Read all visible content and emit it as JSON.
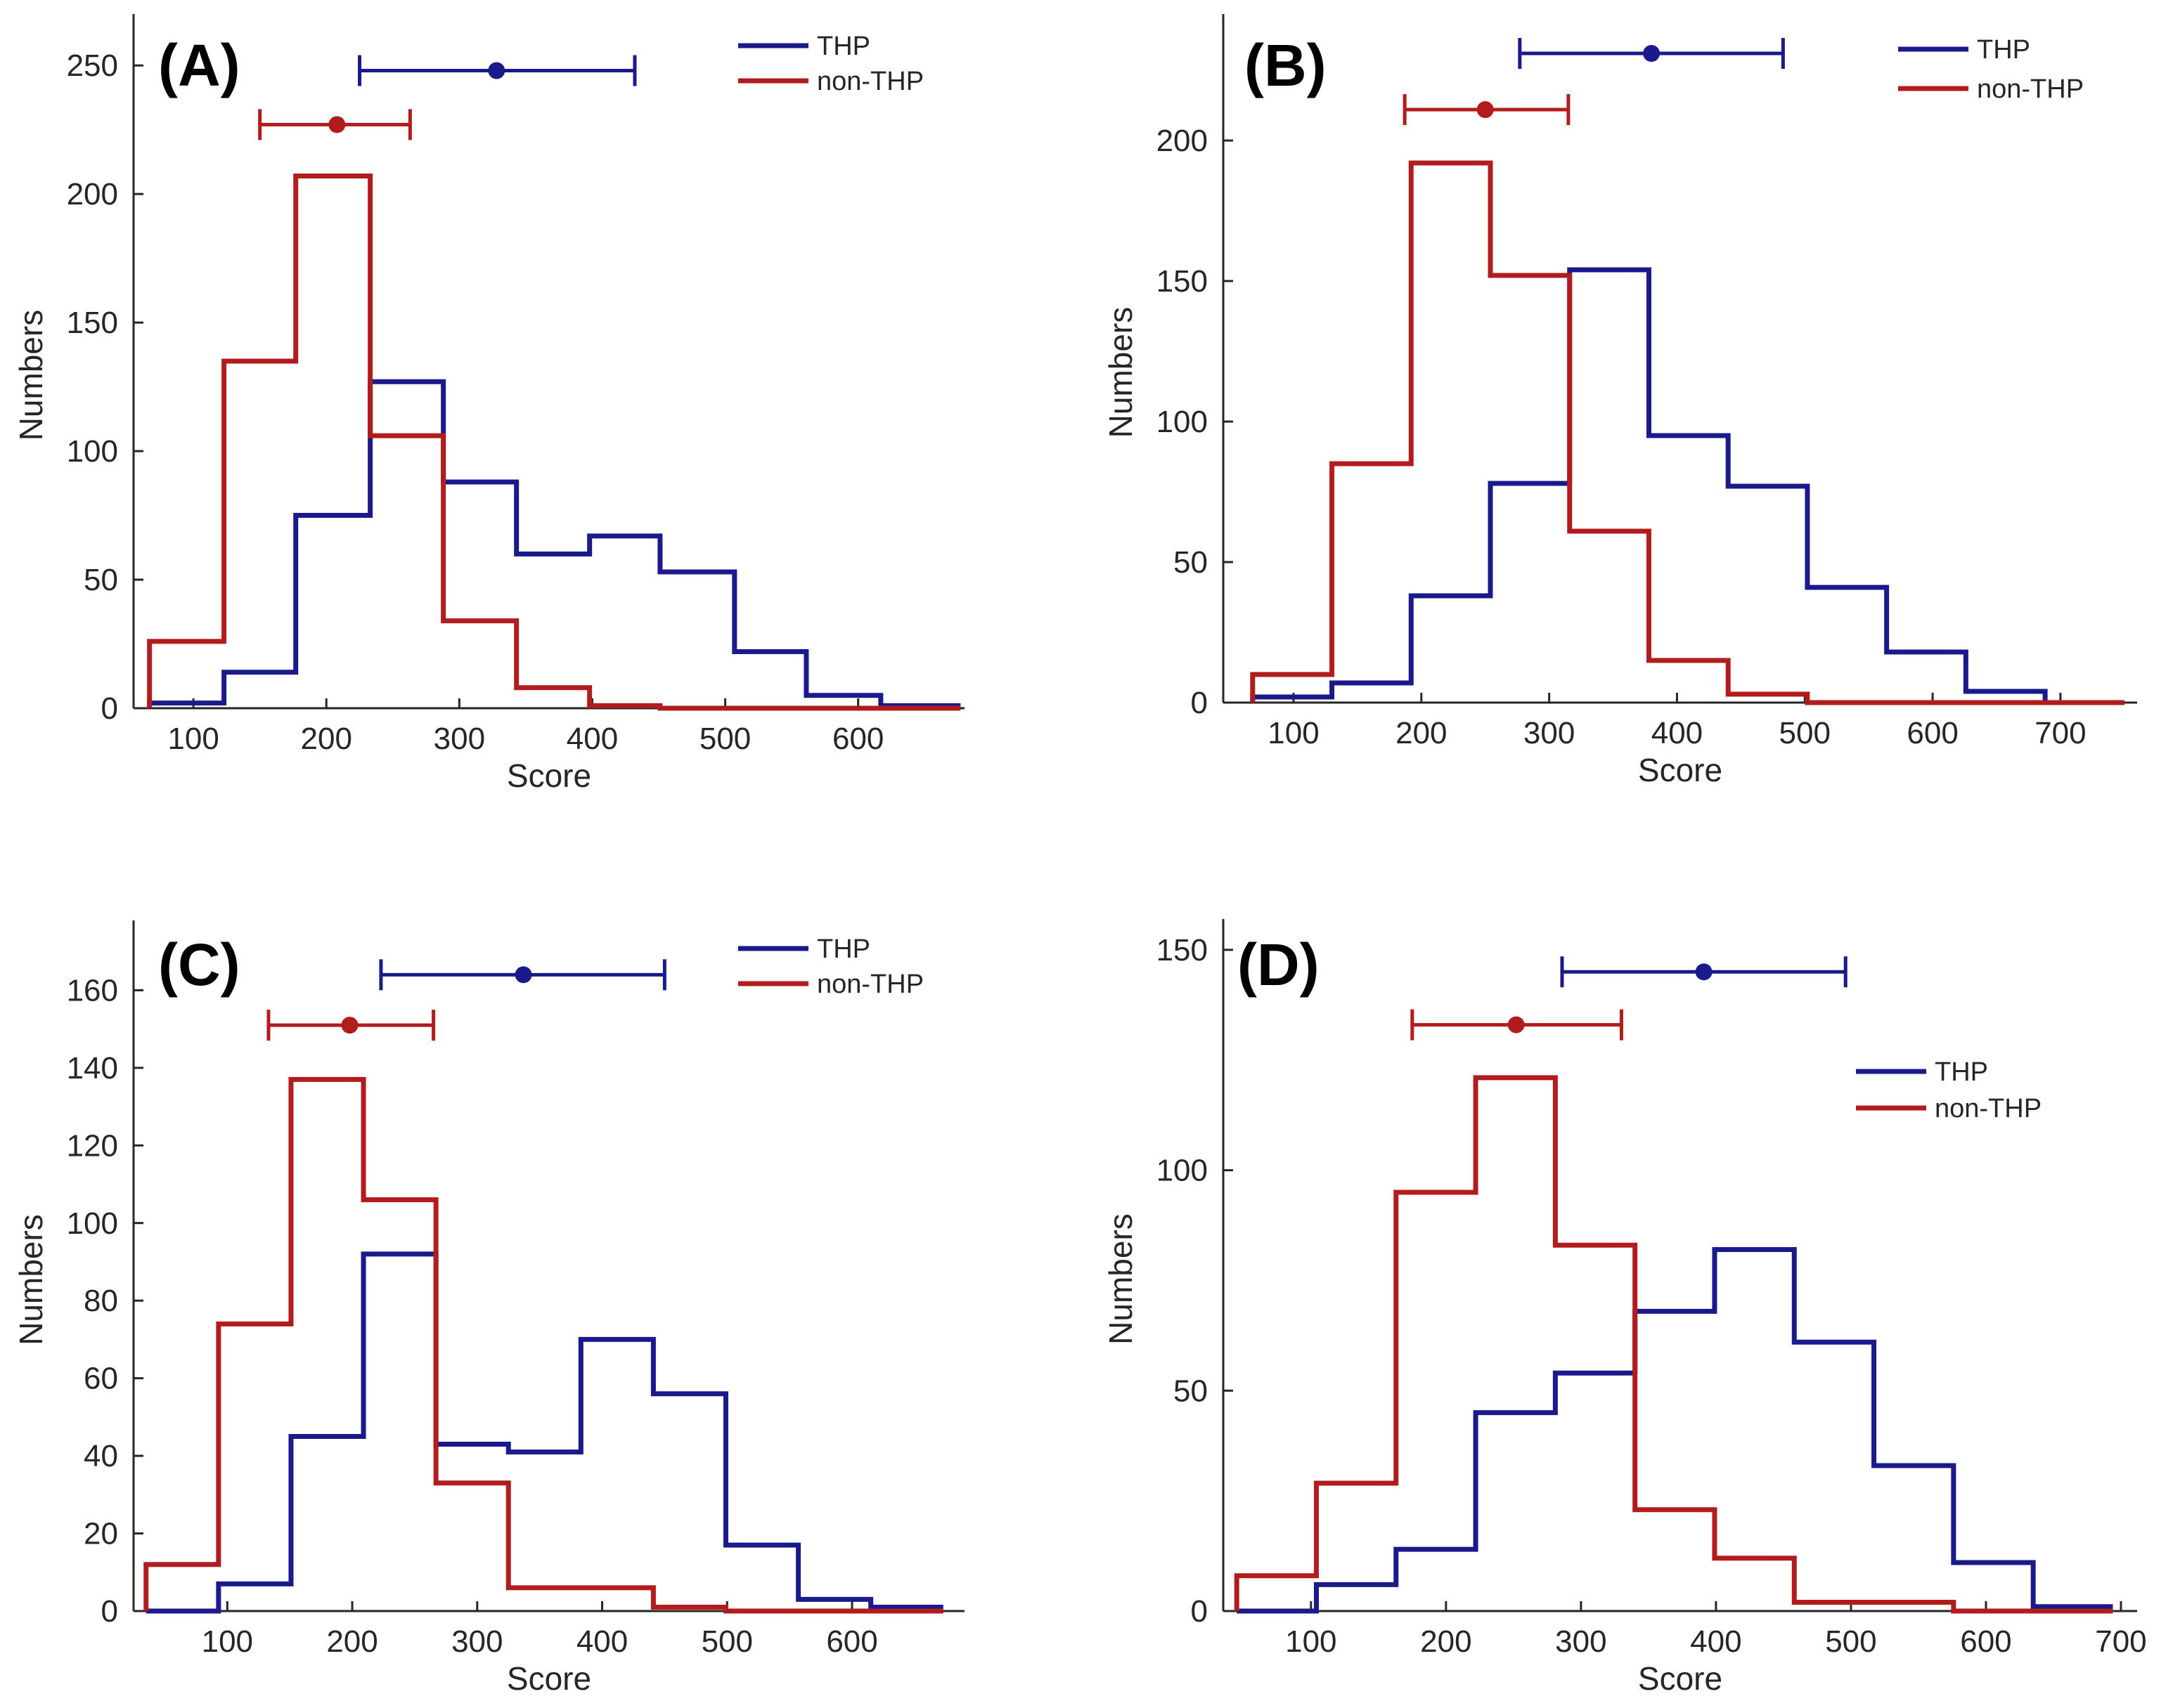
{
  "figure": {
    "colors": {
      "thp": "#1a1a8c",
      "non_thp": "#b21c1c",
      "axis": "#262626"
    }
  },
  "chart_data": [
    {
      "panel": "(A)",
      "type": "histogram",
      "xlabel": "Score",
      "ylabel": "Numbers",
      "xlim": [
        55,
        680
      ],
      "ylim": [
        0,
        270
      ],
      "xticks": [
        100,
        200,
        300,
        400,
        500,
        600
      ],
      "yticks": [
        0,
        50,
        100,
        150,
        200,
        250
      ],
      "legend": {
        "location": "top-right",
        "entries": [
          "THP",
          "non-THP"
        ]
      },
      "series": [
        {
          "name": "THP",
          "color": "#1a1a8c",
          "edges": [
            67,
            123,
            177,
            233,
            288,
            343,
            398,
            451,
            507,
            561,
            617,
            677
          ],
          "counts": [
            2,
            14,
            75,
            127,
            88,
            60,
            67,
            53,
            22,
            5,
            1
          ]
        },
        {
          "name": "non-THP",
          "color": "#b21c1c",
          "edges": [
            67,
            123,
            177,
            233,
            288,
            343,
            398,
            451,
            507,
            561,
            617,
            677
          ],
          "counts": [
            26,
            135,
            207,
            106,
            34,
            8,
            1,
            0,
            0,
            0,
            0
          ]
        }
      ],
      "errorbars": [
        {
          "name": "THP",
          "mean": 328,
          "low": 225,
          "high": 432,
          "y": 248
        },
        {
          "name": "non-THP",
          "mean": 208,
          "low": 150,
          "high": 263,
          "y": 227
        }
      ]
    },
    {
      "panel": "(B)",
      "type": "histogram",
      "xlabel": "Score",
      "ylabel": "Numbers",
      "xlim": [
        45,
        760
      ],
      "ylim": [
        0,
        245
      ],
      "xticks": [
        100,
        200,
        300,
        400,
        500,
        600,
        700
      ],
      "yticks": [
        0,
        50,
        100,
        150,
        200
      ],
      "legend": {
        "location": "top-right",
        "entries": [
          "THP",
          "non-THP"
        ]
      },
      "series": [
        {
          "name": "THP",
          "color": "#1a1a8c",
          "edges": [
            68,
            130,
            192,
            254,
            316,
            378,
            440,
            502,
            564,
            626,
            688,
            750
          ],
          "counts": [
            2,
            7,
            38,
            78,
            154,
            95,
            77,
            41,
            18,
            4,
            0
          ]
        },
        {
          "name": "non-THP",
          "color": "#b21c1c",
          "edges": [
            68,
            130,
            192,
            254,
            316,
            378,
            440,
            502,
            564,
            626,
            688,
            750
          ],
          "counts": [
            10,
            85,
            192,
            152,
            61,
            15,
            3,
            0,
            0,
            0,
            0
          ]
        }
      ],
      "errorbars": [
        {
          "name": "THP",
          "mean": 380,
          "low": 277,
          "high": 483,
          "y": 231
        },
        {
          "name": "non-THP",
          "mean": 250,
          "low": 187,
          "high": 315,
          "y": 211
        }
      ]
    },
    {
      "panel": "(C)",
      "type": "histogram",
      "xlabel": "Score",
      "ylabel": "Numbers",
      "xlim": [
        25,
        690
      ],
      "ylim": [
        0,
        178
      ],
      "xticks": [
        100,
        200,
        300,
        400,
        500,
        600
      ],
      "yticks": [
        0,
        20,
        40,
        60,
        80,
        100,
        120,
        140,
        160
      ],
      "legend": {
        "location": "top-right",
        "entries": [
          "THP",
          "non-THP"
        ]
      },
      "series": [
        {
          "name": "THP",
          "color": "#1a1a8c",
          "edges": [
            35,
            93,
            151,
            209,
            267,
            325,
            383,
            441,
            499,
            557,
            615,
            673
          ],
          "counts": [
            0,
            7,
            45,
            92,
            43,
            41,
            70,
            56,
            17,
            3,
            1
          ]
        },
        {
          "name": "non-THP",
          "color": "#b21c1c",
          "edges": [
            35,
            93,
            151,
            209,
            267,
            325,
            383,
            441,
            499,
            557,
            615,
            673
          ],
          "counts": [
            12,
            74,
            137,
            106,
            33,
            6,
            6,
            1,
            0,
            0,
            0
          ]
        }
      ],
      "errorbars": [
        {
          "name": "THP",
          "mean": 337,
          "low": 223,
          "high": 450,
          "y": 164
        },
        {
          "name": "non-THP",
          "mean": 198,
          "low": 133,
          "high": 265,
          "y": 151
        }
      ]
    },
    {
      "panel": "(D)",
      "type": "histogram",
      "xlabel": "Score",
      "ylabel": "Numbers",
      "xlim": [
        35,
        712
      ],
      "ylim": [
        0,
        157
      ],
      "xticks": [
        100,
        200,
        300,
        400,
        500,
        600,
        700
      ],
      "yticks": [
        0,
        50,
        100,
        150
      ],
      "legend": {
        "location": "upper-right",
        "entries": [
          "THP",
          "non-THP"
        ]
      },
      "series": [
        {
          "name": "THP",
          "color": "#1a1a8c",
          "edges": [
            45,
            104,
            163,
            222,
            281,
            340,
            399,
            458,
            517,
            576,
            635,
            694
          ],
          "counts": [
            0,
            6,
            14,
            45,
            54,
            68,
            82,
            61,
            33,
            11,
            1
          ]
        },
        {
          "name": "non-THP",
          "color": "#b21c1c",
          "edges": [
            45,
            104,
            163,
            222,
            281,
            340,
            399,
            458,
            517,
            576,
            635,
            694
          ],
          "counts": [
            8,
            29,
            95,
            121,
            83,
            23,
            12,
            2,
            2,
            0,
            0
          ]
        }
      ],
      "errorbars": [
        {
          "name": "THP",
          "mean": 391,
          "low": 286,
          "high": 496,
          "y": 145
        },
        {
          "name": "non-THP",
          "mean": 252,
          "low": 175,
          "high": 330,
          "y": 133
        }
      ]
    }
  ]
}
